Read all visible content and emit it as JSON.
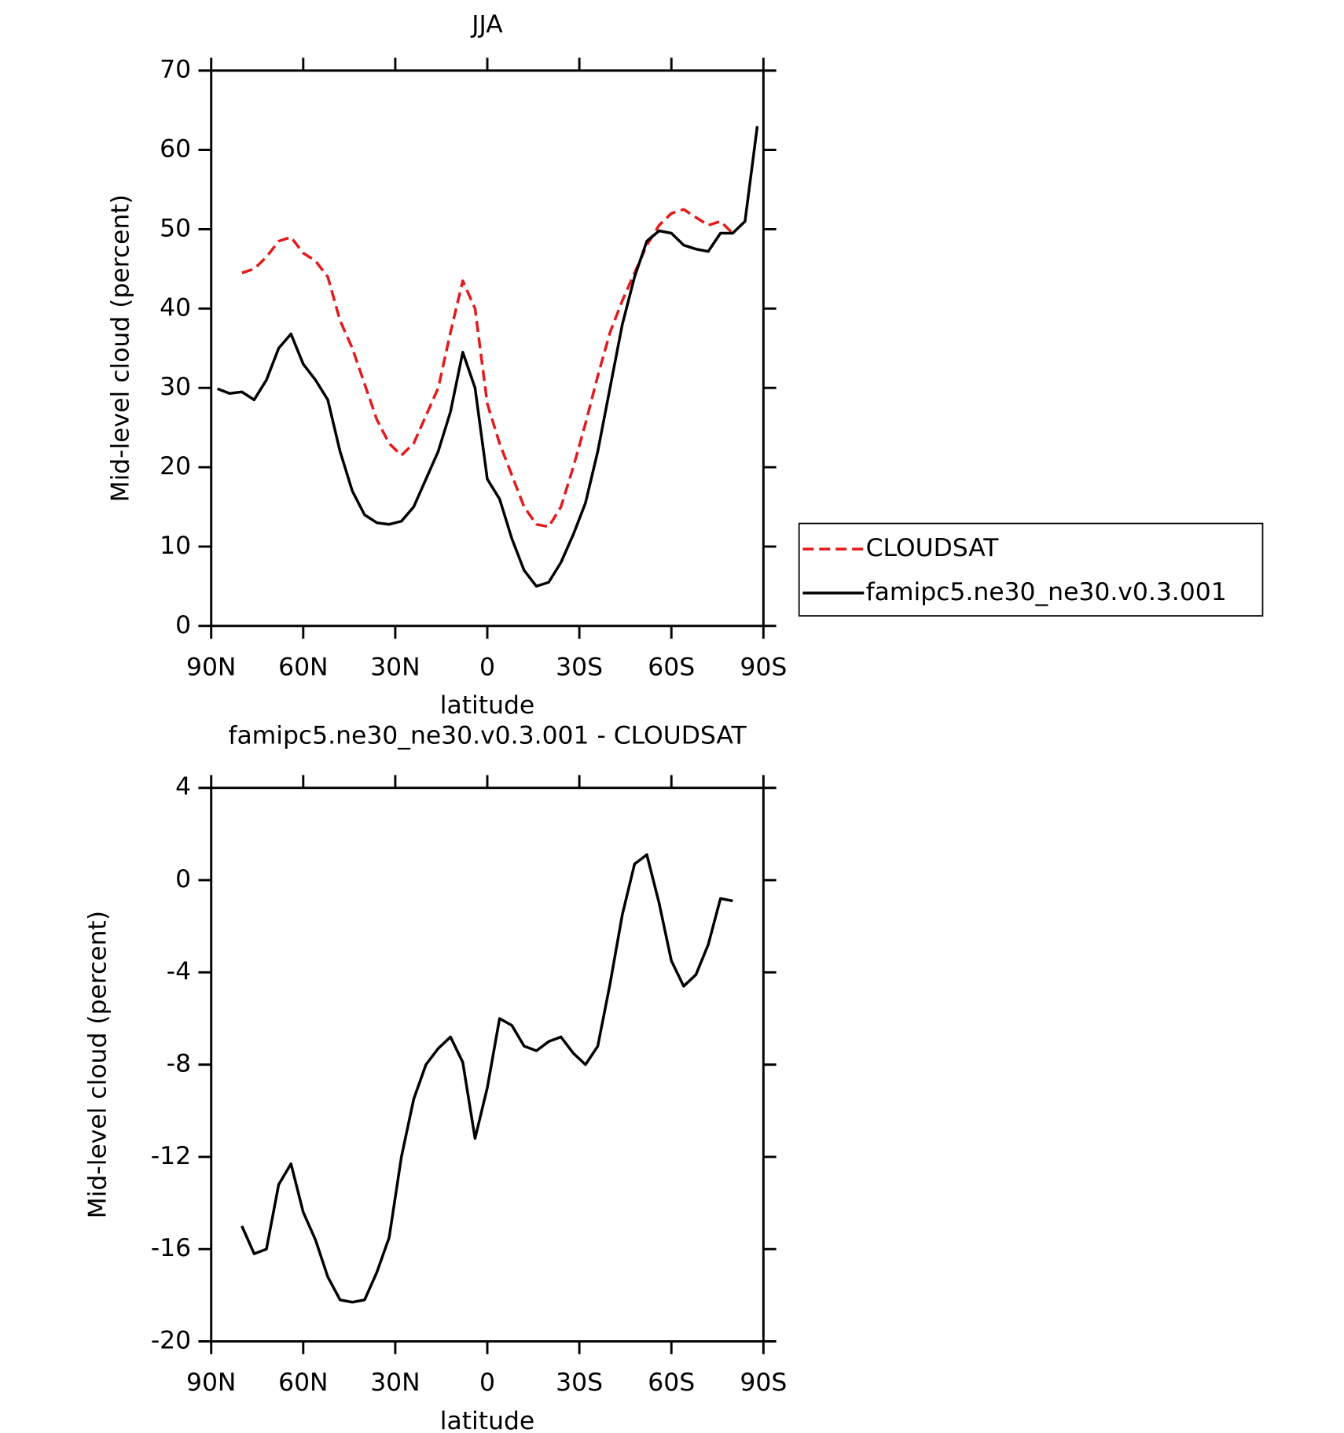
{
  "chart_data": [
    {
      "type": "line",
      "title": "JJA",
      "x_label": "latitude",
      "y_label": "Mid-level cloud (percent)",
      "x": [
        88,
        84,
        80,
        76,
        72,
        68,
        64,
        60,
        56,
        52,
        48,
        44,
        40,
        36,
        32,
        28,
        24,
        20,
        16,
        12,
        8,
        4,
        0,
        -4,
        -8,
        -12,
        -16,
        -20,
        -24,
        -28,
        -32,
        -36,
        -40,
        -44,
        -48,
        -52,
        -56,
        -60,
        -64,
        -68,
        -72,
        -76,
        -80,
        -84,
        -88
      ],
      "xlim": [
        90,
        -90
      ],
      "xticks": [
        {
          "value": 90,
          "label": "90N"
        },
        {
          "value": 60,
          "label": "60N"
        },
        {
          "value": 30,
          "label": "30N"
        },
        0,
        {
          "value": -30,
          "label": "30S"
        },
        {
          "value": -60,
          "label": "60S"
        },
        {
          "value": -90,
          "label": "90S"
        }
      ],
      "ylim": [
        0,
        70
      ],
      "yticks": [
        0,
        10,
        20,
        30,
        40,
        50,
        60,
        70
      ],
      "legend": "right",
      "series": [
        {
          "name": "CLOUDSAT",
          "color": "#e31a1c",
          "style": "dashed",
          "values": [
            null,
            null,
            44.5,
            45,
            46.5,
            48.5,
            49,
            47,
            46,
            44,
            38.5,
            35,
            30.5,
            26,
            23,
            21.5,
            23,
            26.5,
            30,
            37,
            43.5,
            40,
            28,
            23,
            19,
            15,
            12.8,
            12.5,
            15,
            20,
            25.5,
            31.5,
            37,
            41,
            44.5,
            48,
            50.5,
            52,
            52.5,
            51.5,
            50.5,
            51,
            49.5,
            null,
            null
          ]
        },
        {
          "name": "famipc5.ne30_ne30.v0.3.001",
          "color": "#000000",
          "style": "solid",
          "values": [
            29.9,
            29.3,
            29.5,
            28.5,
            31,
            35,
            36.8,
            33,
            31,
            28.5,
            22,
            17,
            14,
            13,
            12.8,
            13.2,
            15,
            18.5,
            22,
            27,
            34.5,
            30,
            18.5,
            16,
            11,
            7,
            5,
            5.5,
            8,
            11.5,
            15.5,
            22,
            30,
            38,
            44,
            48.5,
            49.8,
            49.5,
            48,
            47.5,
            47.2,
            49.5,
            49.5,
            51,
            63
          ]
        }
      ]
    },
    {
      "type": "line",
      "title": "famipc5.ne30_ne30.v0.3.001 - CLOUDSAT",
      "x_label": "latitude",
      "y_label": "Mid-level cloud (percent)",
      "x": [
        88,
        84,
        80,
        76,
        72,
        68,
        64,
        60,
        56,
        52,
        48,
        44,
        40,
        36,
        32,
        28,
        24,
        20,
        16,
        12,
        8,
        4,
        0,
        -4,
        -8,
        -12,
        -16,
        -20,
        -24,
        -28,
        -32,
        -36,
        -40,
        -44,
        -48,
        -52,
        -56,
        -60,
        -64,
        -68,
        -72,
        -76,
        -80,
        -84,
        -88
      ],
      "xlim": [
        90,
        -90
      ],
      "xticks": [
        {
          "value": 90,
          "label": "90N"
        },
        {
          "value": 60,
          "label": "60N"
        },
        {
          "value": 30,
          "label": "30N"
        },
        0,
        {
          "value": -30,
          "label": "30S"
        },
        {
          "value": -60,
          "label": "60S"
        },
        {
          "value": -90,
          "label": "90S"
        }
      ],
      "ylim": [
        -20,
        4
      ],
      "yticks": [
        -20,
        -16,
        -12,
        -8,
        -4,
        0,
        4
      ],
      "series": [
        {
          "color": "#000000",
          "style": "solid",
          "values": [
            null,
            null,
            -15,
            -16.2,
            -16,
            -13.2,
            -12.3,
            -14.4,
            -15.6,
            -17.2,
            -18.2,
            -18.3,
            -18.2,
            -17,
            -15.5,
            -12,
            -9.5,
            -8,
            -7.3,
            -6.8,
            -7.9,
            -11.2,
            -9,
            -6,
            -6.3,
            -7.2,
            -7.4,
            -7,
            -6.8,
            -7.5,
            -8,
            -7.2,
            -4.5,
            -1.5,
            0.7,
            1.1,
            -1,
            -3.5,
            -4.6,
            -4.1,
            -2.8,
            -0.8,
            -0.9,
            null,
            null
          ]
        }
      ]
    }
  ]
}
